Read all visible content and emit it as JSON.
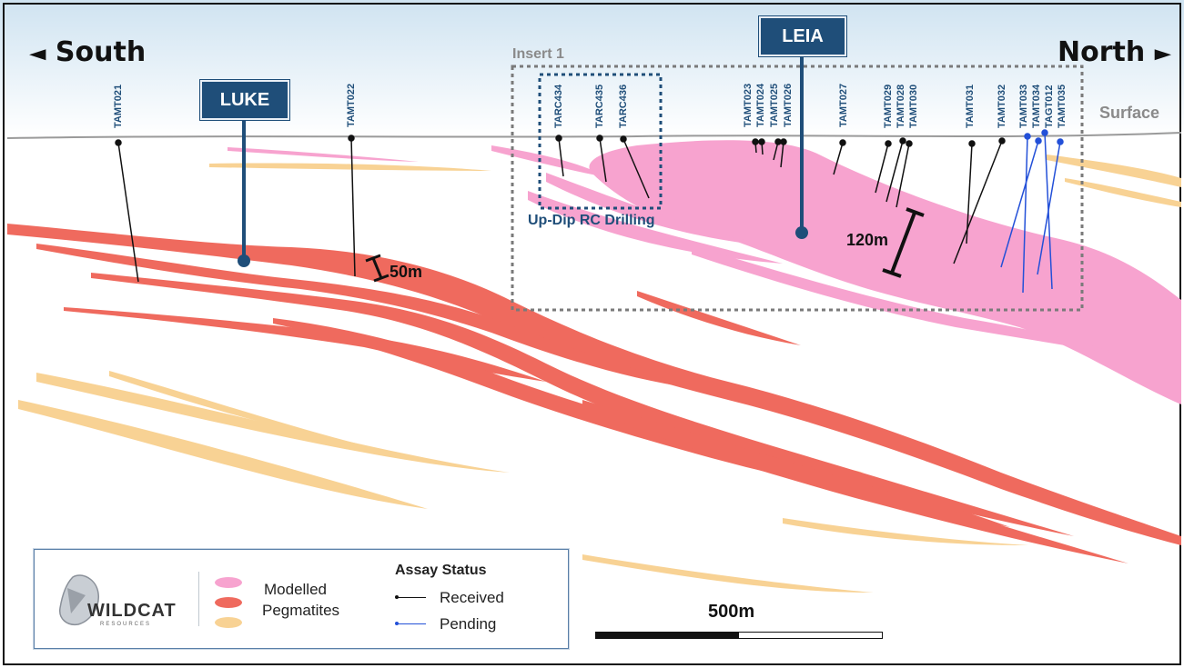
{
  "directions": {
    "south": "South",
    "north": "North",
    "south_arrow": "◄",
    "north_arrow": "►"
  },
  "surface_label": "Surface",
  "insert_label": "Insert 1",
  "updip_label": "Up-Dip RC Drilling",
  "deposits": [
    {
      "name": "LUKE"
    },
    {
      "name": "LEIA"
    }
  ],
  "thickness_labels": {
    "luke": "50m",
    "leia": "120m"
  },
  "drillholes_received": [
    "TAMT021",
    "TAMT022",
    "TARC434",
    "TARC435",
    "TARC436",
    "TAMT023",
    "TAMT024",
    "TAMT025",
    "TAMT026",
    "TAMT027",
    "TAMT029",
    "TAMT028",
    "TAMT030",
    "TAMT031",
    "TAMT032"
  ],
  "drillholes_pending": [
    "TAMT033",
    "TAMT034",
    "TAGT012",
    "TAMT035"
  ],
  "legend": {
    "company": "WILDCAT",
    "company_sub": "RESOURCES",
    "pegmatites_line1": "Modelled",
    "pegmatites_line2": "Pegmatites",
    "assay_title": "Assay Status",
    "received": "Received",
    "pending": "Pending"
  },
  "scale_bar": "500m",
  "colors": {
    "pink": "#f7a3cf",
    "red": "#ef6a5e",
    "orange": "#f8d294",
    "navy": "#1f4e79",
    "blue_pending": "#2350d8",
    "surface": "#9a9a9a"
  }
}
